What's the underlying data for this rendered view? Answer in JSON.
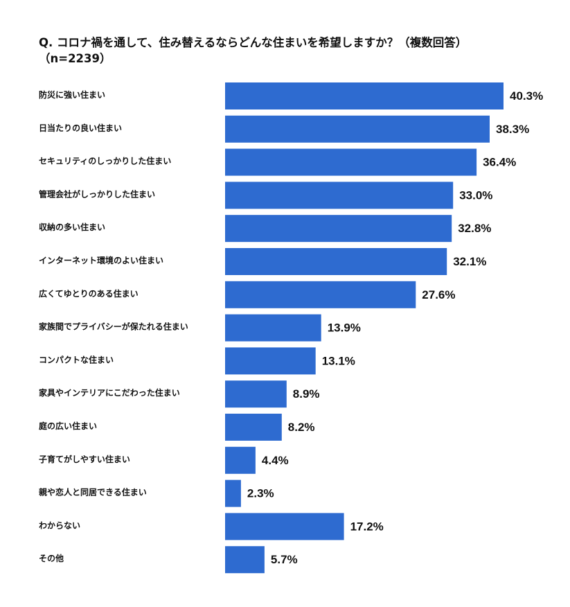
{
  "title_line1": "Q. コロナ禍を通して、住み替えるならどんな住まいを希望しますか？（複数回答）",
  "title_line2": "（n=2239）",
  "colors": {
    "bar": "#2e6bd0",
    "text": "#111111",
    "background": "#ffffff"
  },
  "chart_data": {
    "type": "bar",
    "orientation": "horizontal",
    "title": "Q. コロナ禍を通して、住み替えるならどんな住まいを希望しますか？（複数回答）（n=2239）",
    "unit": "%",
    "xlim": [
      0,
      40.3
    ],
    "grid": false,
    "categories": [
      "防災に強い住まい",
      "日当たりの良い住まい",
      "セキュリティのしっかりした住まい",
      "管理会社がしっかりした住まい",
      "収納の多い住まい",
      "インターネット環境のよい住まい",
      "広くてゆとりのある住まい",
      "家族間でプライバシーが保たれる住まい",
      "コンパクトな住まい",
      "家具やインテリアにこだわった住まい",
      "庭の広い住まい",
      "子育てがしやすい住まい",
      "親や恋人と同居できる住まい",
      "わからない",
      "その他"
    ],
    "values": [
      40.3,
      38.3,
      36.4,
      33.0,
      32.8,
      32.1,
      27.6,
      13.9,
      13.1,
      8.9,
      8.2,
      4.4,
      2.3,
      17.2,
      5.7
    ],
    "value_labels": [
      "40.3%",
      "38.3%",
      "36.4%",
      "33.0%",
      "32.8%",
      "32.1%",
      "27.6%",
      "13.9%",
      "13.1%",
      "8.9%",
      "8.2%",
      "4.4%",
      "2.3%",
      "17.2%",
      "5.7%"
    ]
  }
}
